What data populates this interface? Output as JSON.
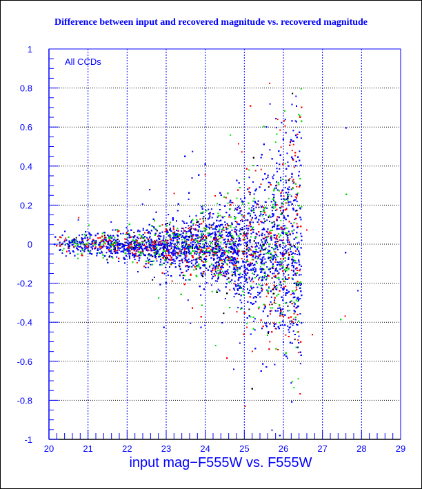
{
  "chart_data": {
    "type": "scatter",
    "title": "Difference between input and recovered magnitude vs. recovered magnitude",
    "xlabel": "input mag−F555W vs. F555W",
    "ylabel": "",
    "annotation": "All CCDs",
    "xlim": [
      20,
      29
    ],
    "ylim": [
      -1,
      1
    ],
    "xticks": [
      20,
      21,
      22,
      23,
      24,
      25,
      26,
      27,
      28,
      29
    ],
    "yticks": [
      -1,
      -0.8,
      -0.6,
      -0.4,
      -0.2,
      0,
      0.2,
      0.4,
      0.6,
      0.8,
      1
    ],
    "grid": true,
    "series_colors": [
      "#0000ff",
      "#ff0000",
      "#00dd00",
      "#000000"
    ],
    "envelope": {
      "x": [
        20,
        21,
        22,
        23,
        24,
        25,
        25.5,
        26,
        26.4
      ],
      "y_center": [
        0,
        0,
        -0.005,
        -0.01,
        -0.02,
        -0.03,
        -0.03,
        -0.02,
        -0.02
      ],
      "y_spread": [
        0.02,
        0.025,
        0.035,
        0.05,
        0.08,
        0.13,
        0.17,
        0.24,
        0.3
      ]
    },
    "x_cutoff": 26.45
  }
}
